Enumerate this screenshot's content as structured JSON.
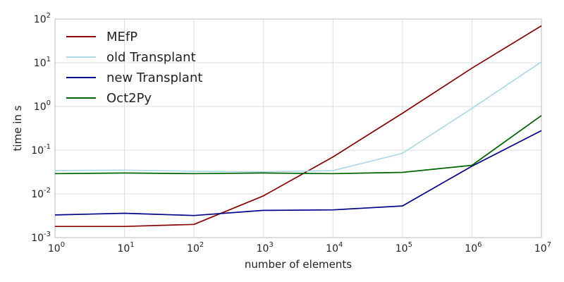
{
  "chart_data": {
    "type": "line",
    "title": "",
    "xlabel": "number of elements",
    "ylabel": "time in s",
    "x_scale": "log",
    "y_scale": "log",
    "xlim": [
      1,
      10000000
    ],
    "ylim": [
      0.001,
      100
    ],
    "x_ticks": [
      {
        "base": "10",
        "exp": "0",
        "value": 1
      },
      {
        "base": "10",
        "exp": "1",
        "value": 10
      },
      {
        "base": "10",
        "exp": "2",
        "value": 100
      },
      {
        "base": "10",
        "exp": "3",
        "value": 1000
      },
      {
        "base": "10",
        "exp": "4",
        "value": 10000
      },
      {
        "base": "10",
        "exp": "5",
        "value": 100000
      },
      {
        "base": "10",
        "exp": "6",
        "value": 1000000
      },
      {
        "base": "10",
        "exp": "7",
        "value": 10000000
      }
    ],
    "y_ticks": [
      {
        "base": "10",
        "exp": "-3",
        "value": 0.001
      },
      {
        "base": "10",
        "exp": "-2",
        "value": 0.01
      },
      {
        "base": "10",
        "exp": "-1",
        "value": 0.1
      },
      {
        "base": "10",
        "exp": "0",
        "value": 1
      },
      {
        "base": "10",
        "exp": "1",
        "value": 10
      },
      {
        "base": "10",
        "exp": "2",
        "value": 100
      }
    ],
    "grid": true,
    "legend_position": "top-left",
    "x": [
      1,
      10,
      100,
      1000,
      10000,
      100000,
      1000000,
      10000000
    ],
    "series": [
      {
        "name": "MEfP",
        "color": "#8b0000",
        "values": [
          0.0018,
          0.0018,
          0.002,
          0.009,
          0.07,
          0.7,
          7.5,
          70
        ]
      },
      {
        "name": "old Transplant",
        "color": "#add8e6",
        "values": [
          0.034,
          0.035,
          0.033,
          0.032,
          0.034,
          0.085,
          0.9,
          10.5
        ]
      },
      {
        "name": "new Transplant",
        "color": "#00008b",
        "values": [
          0.0033,
          0.0036,
          0.0032,
          0.0042,
          0.0043,
          0.0053,
          0.043,
          0.28
        ]
      },
      {
        "name": "Oct2Py",
        "color": "#006400",
        "values": [
          0.029,
          0.03,
          0.029,
          0.03,
          0.029,
          0.031,
          0.045,
          0.62
        ]
      }
    ]
  }
}
